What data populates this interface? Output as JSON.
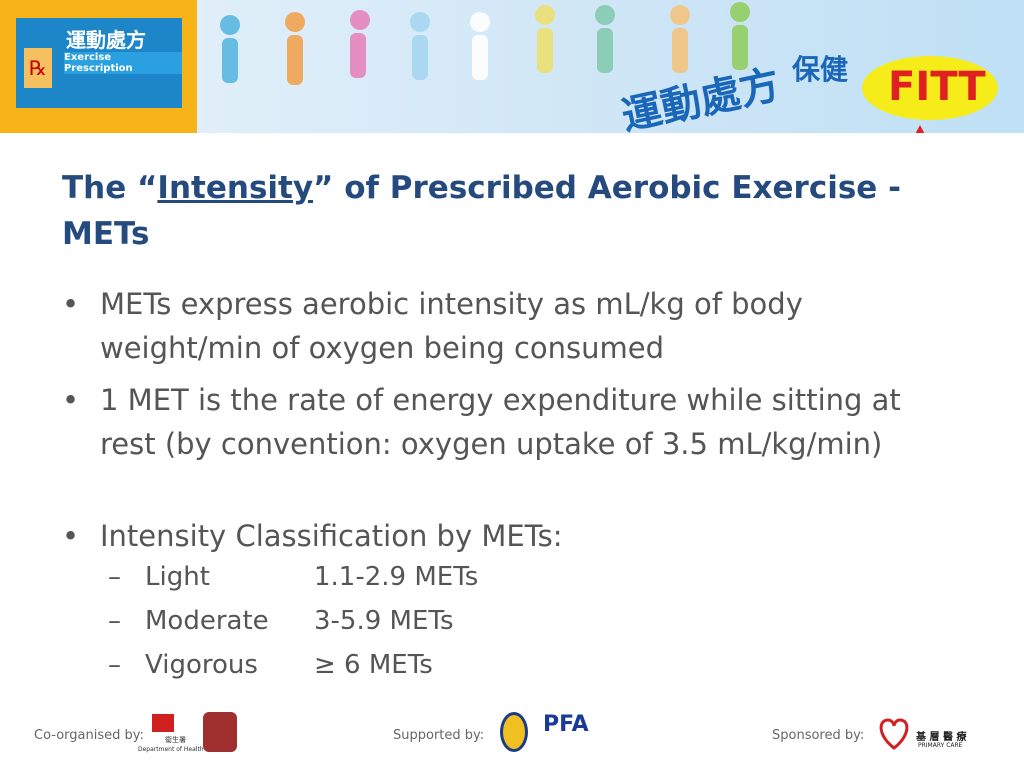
{
  "header": {
    "logo_title": "運動處方",
    "logo_subtitle": "Exercise Prescription",
    "logo_rx": "℞",
    "banner_title": "運動處方",
    "banner_subtitle": "保健",
    "fitt": "FITT"
  },
  "title": {
    "prefix": "The “",
    "emphasis": "Intensity",
    "suffix": "” of Prescribed Aerobic Exercise - METs"
  },
  "bullets": [
    "METs express aerobic intensity as mL/kg of body weight/min of oxygen being consumed",
    "1 MET is the rate of energy expenditure while sitting at rest (by convention: oxygen uptake of 3.5 mL/kg/min)",
    "Intensity Classification by METs:"
  ],
  "sub_bullets": [
    {
      "label": "Light",
      "value": "1.1-2.9 METs"
    },
    {
      "label": "Moderate",
      "value": "3-5.9 METs"
    },
    {
      "label": "Vigorous",
      "value": "≥ 6 METs"
    }
  ],
  "footer": {
    "co_organised": "Co-organised by:",
    "dh_chinese": "衞生署",
    "dh_english": "Department of Health",
    "supported": "Supported by:",
    "pfa": "PFA",
    "sponsored": "Sponsored by:",
    "pc_chinese": "基 層 醫 療",
    "pc_english": "PRIMARY CARE"
  }
}
